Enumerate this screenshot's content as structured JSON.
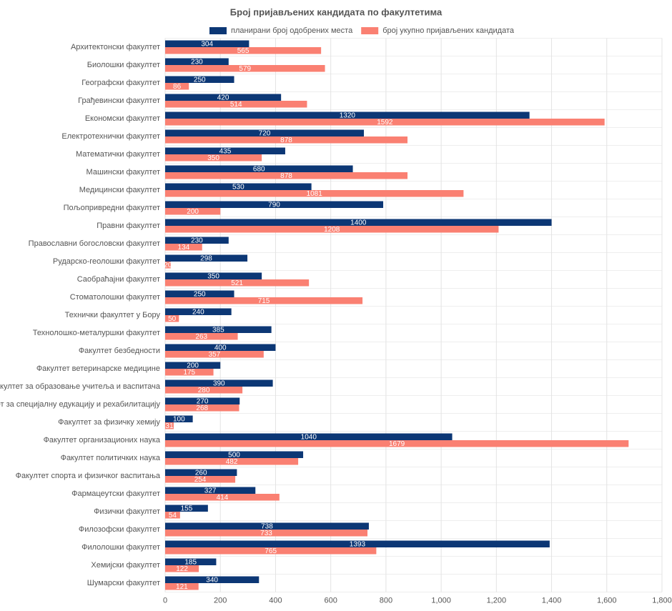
{
  "chart_data": {
    "type": "hbar",
    "title": "Број пријављених кандидата по факултетима",
    "categories": [
      "Архитектонски факултет",
      "Биолошки факултет",
      "Географски факултет",
      "Грађевински факултет",
      "Економски факултет",
      "Електротехнички факултет",
      "Математички факултет",
      "Машински факултет",
      "Медицински факултет",
      "Пољопривредни факултет",
      "Правни факултет",
      "Православни богословски факултет",
      "Рударско-геолошки факултет",
      "Саобраћајни факултет",
      "Стоматолошки факултет",
      "Технички факултет у Бору",
      "Технолошко-металуршки факултет",
      "Факултет безбедности",
      "Факултет ветеринарске медицине",
      "Факултет за образовање учитеља и васпитача",
      "Факултет за специјалну едукацију и рехабилитацију",
      "Факултет за физичку хемију",
      "Факултет организационих наука",
      "Факултет политичких наука",
      "Факултет спорта и физичког васпитања",
      "Фармацеутски факултет",
      "Физички факултет",
      "Филозофски факултет",
      "Филолошки факултет",
      "Хемијски факултет",
      "Шумарски факултет"
    ],
    "series": [
      {
        "name": "планирани број одобрених места",
        "color": "#0c3775",
        "values": [
          304,
          230,
          250,
          420,
          1320,
          720,
          435,
          680,
          530,
          790,
          1400,
          230,
          298,
          350,
          250,
          240,
          385,
          400,
          200,
          390,
          270,
          100,
          1040,
          500,
          260,
          327,
          155,
          738,
          1393,
          185,
          340
        ]
      },
      {
        "name": "број укупно пријављених кандидата",
        "color": "#fa8072",
        "values": [
          565,
          579,
          86,
          514,
          1592,
          878,
          350,
          878,
          1081,
          200,
          1208,
          134,
          20,
          521,
          715,
          50,
          263,
          357,
          175,
          280,
          268,
          31,
          1679,
          482,
          254,
          414,
          54,
          733,
          765,
          122,
          121
        ]
      }
    ],
    "xlim": [
      0,
      1800
    ],
    "xticks": [
      0,
      200,
      400,
      600,
      800,
      {
        "value": 1000,
        "label": "1,000"
      },
      {
        "value": 1200,
        "label": "1,200"
      },
      {
        "value": 1400,
        "label": "1,400"
      },
      {
        "value": 1600,
        "label": "1,600"
      },
      {
        "value": 1800,
        "label": "1,800"
      }
    ],
    "grid": true
  }
}
